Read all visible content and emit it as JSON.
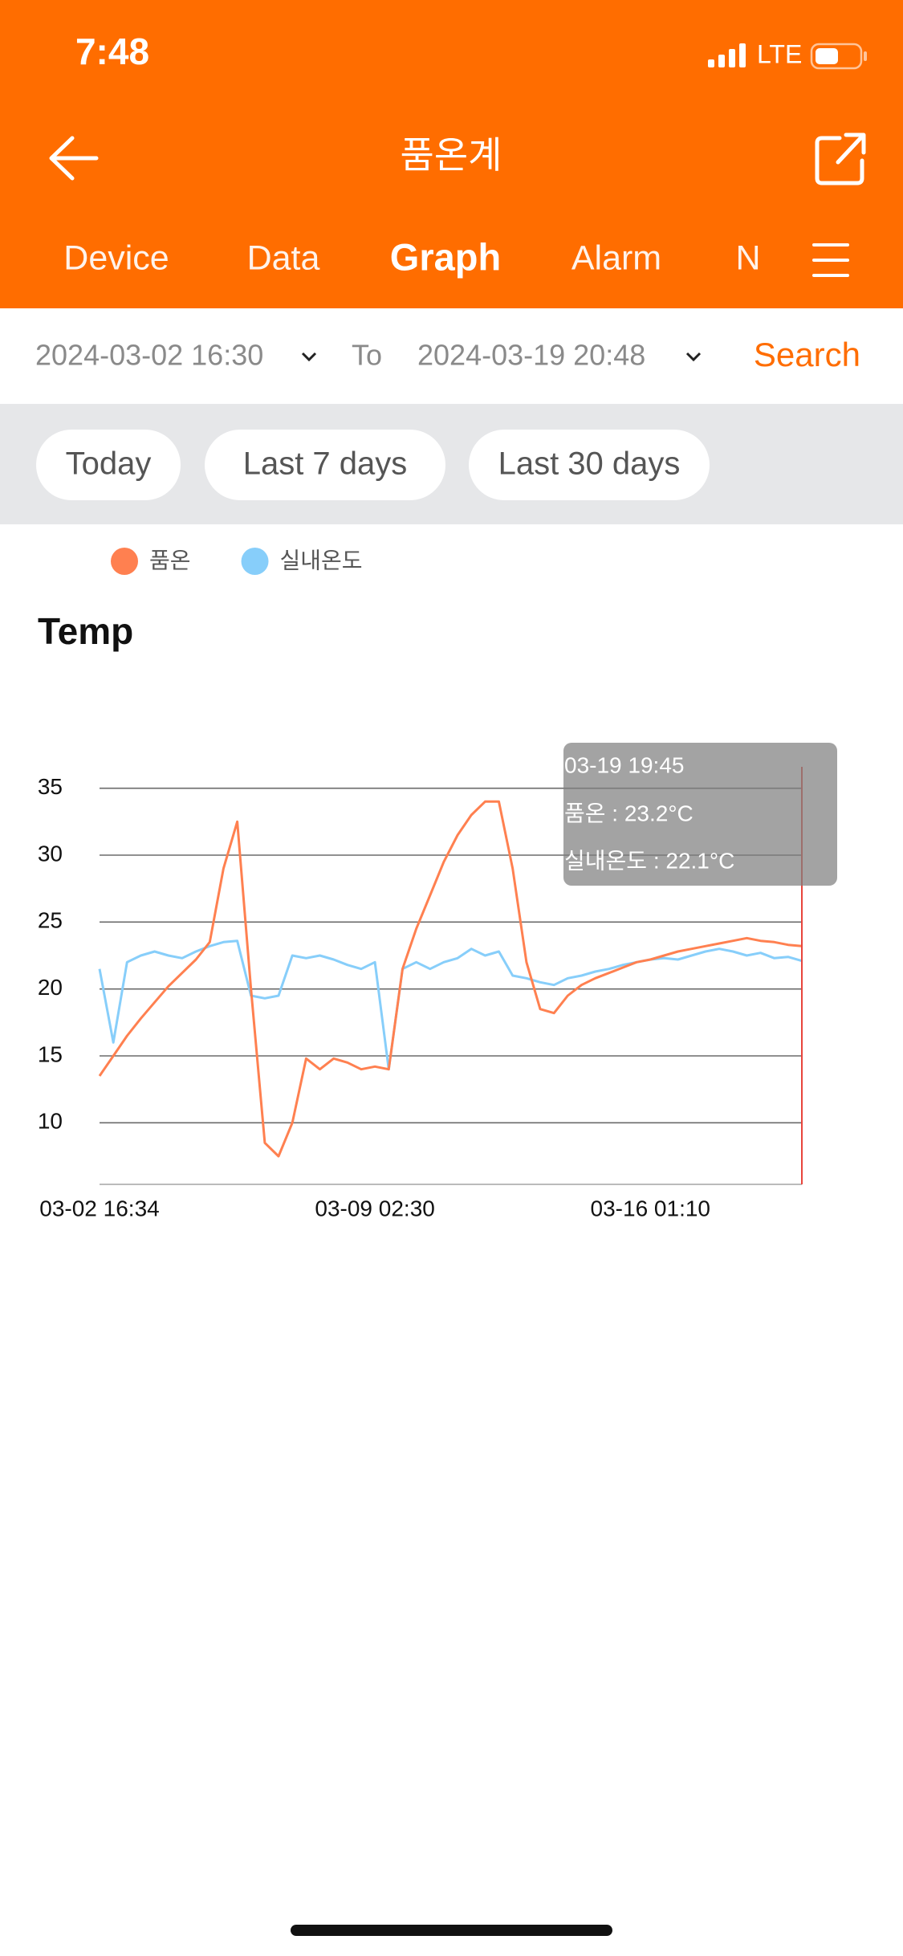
{
  "status_bar": {
    "time": "7:48",
    "network": "LTE"
  },
  "header": {
    "title": "품온계"
  },
  "tabs": [
    "Device",
    "Data",
    "Graph",
    "Alarm",
    "N"
  ],
  "date_range": {
    "from": "2024-03-02 16:30",
    "separator": "To",
    "to": "2024-03-19 20:48",
    "search": "Search"
  },
  "quick_ranges": [
    "Today",
    "Last 7 days",
    "Last 30 days"
  ],
  "chart_data": {
    "type": "line",
    "title": "Temp",
    "categories": [
      "03-02 16:34",
      null,
      null,
      null,
      null,
      null,
      null,
      null,
      null,
      null,
      null,
      null,
      null,
      null,
      null,
      null,
      null,
      null,
      null,
      null,
      "03-09 02:30",
      null,
      null,
      null,
      null,
      null,
      null,
      null,
      null,
      null,
      null,
      null,
      null,
      null,
      null,
      null,
      null,
      null,
      null,
      null,
      "03-16 01:10",
      null,
      null,
      null,
      null,
      null,
      null,
      null,
      null,
      null,
      null,
      null
    ],
    "ylim": [
      5.4,
      36.6
    ],
    "yticks": [
      10,
      15,
      20,
      25,
      30,
      35
    ],
    "grid": true,
    "legend": "top-left",
    "series": [
      {
        "name": "품온",
        "color": "#ff8050",
        "values": [
          13.5,
          15,
          16.5,
          17.8,
          19,
          20.2,
          21.2,
          22.2,
          23.5,
          29,
          32.5,
          20,
          8.5,
          7.5,
          10,
          14.8,
          14,
          14.8,
          14.5,
          14,
          14.2,
          14,
          21.5,
          24.5,
          27,
          29.5,
          31.5,
          33,
          34,
          34,
          29,
          22,
          18.5,
          18.2,
          19.5,
          20.3,
          20.8,
          21.2,
          21.6,
          22,
          22.2,
          22.5,
          22.8,
          23,
          23.2,
          23.4,
          23.6,
          23.8,
          23.6,
          23.5,
          23.3,
          23.2
        ]
      },
      {
        "name": "실내온도",
        "color": "#87cefa",
        "values": [
          21.5,
          16,
          22,
          22.5,
          22.8,
          22.5,
          22.3,
          22.8,
          23.2,
          23.5,
          23.6,
          19.5,
          19.3,
          19.5,
          22.5,
          22.3,
          22.5,
          22.2,
          21.8,
          21.5,
          22,
          14,
          21.5,
          22,
          21.5,
          22,
          22.3,
          23,
          22.5,
          22.8,
          21,
          20.8,
          20.5,
          20.3,
          20.8,
          21,
          21.3,
          21.5,
          21.8,
          22,
          22.2,
          22.3,
          22.2,
          22.5,
          22.8,
          23,
          22.8,
          22.5,
          22.7,
          22.3,
          22.4,
          22.1
        ]
      }
    ]
  },
  "tooltip": {
    "time": "03-19 19:45",
    "lines": [
      "품온 : 23.2°C",
      "실내온도 : 22.1°C"
    ]
  }
}
